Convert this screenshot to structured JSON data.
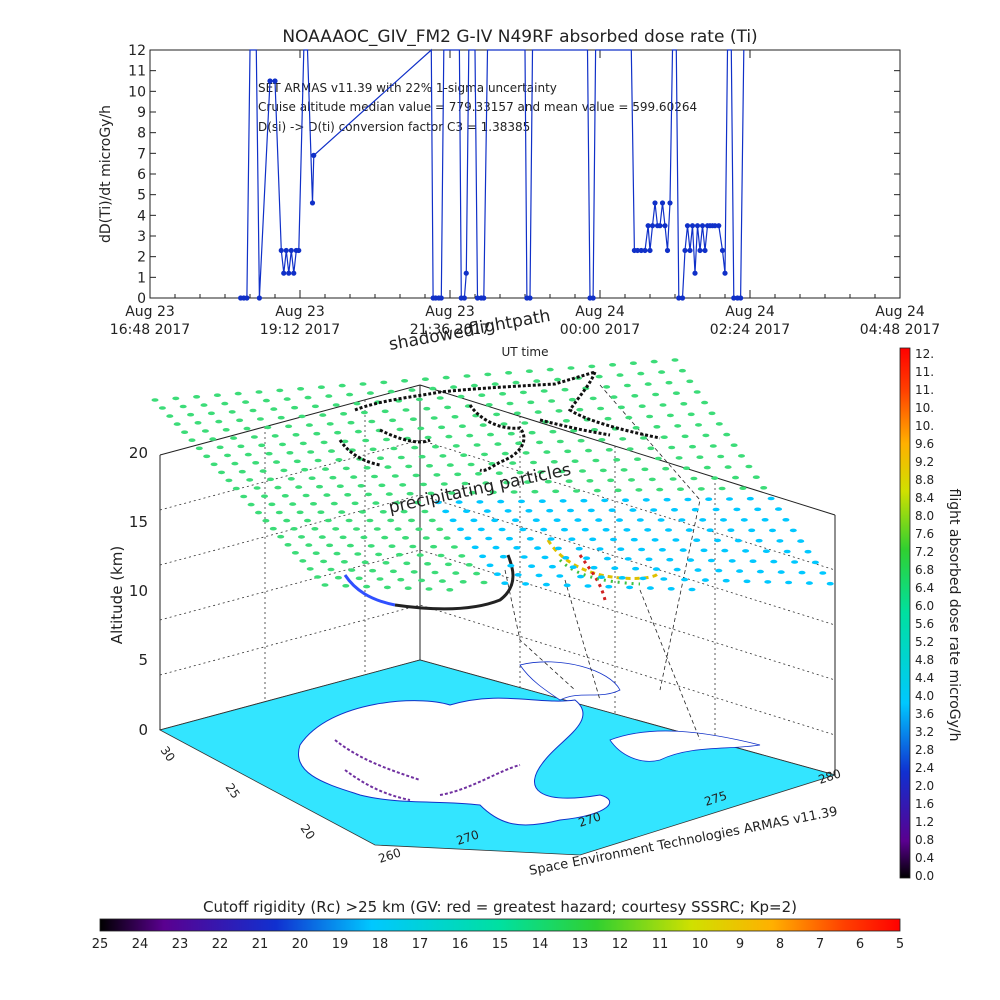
{
  "chart_data": [
    {
      "type": "line",
      "title": "NOAAAOC_GIV_FM2 G-IV   N49RF  absorbed dose rate (Ti)",
      "ylabel": "dD(Ti)/dt microGy/h",
      "xlabel": "UT time",
      "ylim": [
        0,
        12
      ],
      "yticks": [
        "0",
        "1",
        "2",
        "3",
        "4",
        "5",
        "6",
        "7",
        "8",
        "9",
        "10",
        "11",
        "12"
      ],
      "xlim_hours": [
        0,
        12
      ],
      "xticks": [
        {
          "hours": 0,
          "line1": "Aug 23",
          "line2": "16:48 2017"
        },
        {
          "hours": 2.4,
          "line1": "Aug 23",
          "line2": "19:12 2017"
        },
        {
          "hours": 4.8,
          "line1": "Aug 23",
          "line2": "21:36 2017"
        },
        {
          "hours": 7.2,
          "line1": "Aug 24",
          "line2": "00:00 2017"
        },
        {
          "hours": 9.6,
          "line1": "Aug 24",
          "line2": "02:24 2017"
        },
        {
          "hours": 12.0,
          "line1": "Aug 24",
          "line2": "04:48 2017"
        }
      ],
      "annotations": [
        "SET ARMAS v11.39 with 22% 1-sigma uncertainty",
        "Cruise altitude median value = 779.33157 and mean value = 599.60264",
        "D(si) -> D(ti) conversion factor C3 = 1.38385"
      ],
      "series": [
        {
          "color": "#1030c8",
          "points": [
            [
              1.45,
              0
            ],
            [
              1.5,
              0
            ],
            [
              1.55,
              0
            ],
            [
              1.6,
              14
            ],
            [
              1.7,
              14
            ],
            [
              1.75,
              0
            ],
            [
              1.92,
              10.5
            ],
            [
              2.0,
              10.5
            ],
            [
              2.1,
              2.3
            ],
            [
              2.14,
              1.2
            ],
            [
              2.18,
              2.3
            ],
            [
              2.22,
              1.2
            ],
            [
              2.26,
              2.3
            ],
            [
              2.3,
              1.2
            ],
            [
              2.34,
              2.3
            ],
            [
              2.38,
              2.3
            ],
            [
              2.46,
              14
            ],
            [
              2.52,
              14
            ],
            [
              2.6,
              4.6
            ],
            [
              2.62,
              6.9
            ],
            [
              4.5,
              14
            ],
            [
              4.53,
              0
            ],
            [
              4.57,
              0
            ],
            [
              4.62,
              0
            ],
            [
              4.66,
              0
            ],
            [
              4.7,
              14
            ],
            [
              4.95,
              14
            ],
            [
              4.98,
              0
            ],
            [
              5.03,
              0
            ],
            [
              5.06,
              1.2
            ],
            [
              5.1,
              14
            ],
            [
              5.2,
              14
            ],
            [
              5.24,
              0
            ],
            [
              5.3,
              0
            ],
            [
              5.34,
              0
            ],
            [
              5.4,
              14
            ],
            [
              6.0,
              14
            ],
            [
              6.03,
              0
            ],
            [
              6.08,
              0
            ],
            [
              6.12,
              14
            ],
            [
              7.0,
              14
            ],
            [
              7.04,
              0
            ],
            [
              7.09,
              0
            ],
            [
              7.13,
              14
            ],
            [
              7.7,
              14
            ],
            [
              7.75,
              2.3
            ],
            [
              7.8,
              2.3
            ],
            [
              7.86,
              2.3
            ],
            [
              7.92,
              2.3
            ],
            [
              7.97,
              3.5
            ],
            [
              8.0,
              2.3
            ],
            [
              8.04,
              3.5
            ],
            [
              8.08,
              4.6
            ],
            [
              8.12,
              3.5
            ],
            [
              8.16,
              3.5
            ],
            [
              8.2,
              4.6
            ],
            [
              8.24,
              3.5
            ],
            [
              8.28,
              2.3
            ],
            [
              8.32,
              4.6
            ],
            [
              8.36,
              14
            ],
            [
              8.42,
              14
            ],
            [
              8.46,
              0
            ],
            [
              8.52,
              0
            ],
            [
              8.56,
              2.3
            ],
            [
              8.6,
              3.5
            ],
            [
              8.64,
              2.3
            ],
            [
              8.68,
              3.5
            ],
            [
              8.72,
              1.2
            ],
            [
              8.76,
              3.5
            ],
            [
              8.8,
              2.3
            ],
            [
              8.84,
              3.5
            ],
            [
              8.88,
              2.3
            ],
            [
              8.92,
              3.5
            ],
            [
              8.96,
              3.5
            ],
            [
              9.0,
              3.5
            ],
            [
              9.04,
              3.5
            ],
            [
              9.1,
              3.5
            ],
            [
              9.16,
              2.3
            ],
            [
              9.2,
              1.2
            ],
            [
              9.24,
              14
            ],
            [
              9.3,
              14
            ],
            [
              9.34,
              0
            ],
            [
              9.4,
              0
            ],
            [
              9.45,
              0
            ],
            [
              9.5,
              14
            ]
          ]
        }
      ]
    },
    {
      "type": "scatter",
      "title": "",
      "annotations": [
        "flightpath",
        "shadowed",
        "precipitating particles"
      ],
      "zlabel": "Altitude (km)",
      "zticks": [
        "0",
        "5",
        "10",
        "15",
        "20"
      ],
      "lat_ticks": [
        "20",
        "25",
        "30"
      ],
      "lon_ticks": [
        "260",
        "270",
        "275",
        "280"
      ],
      "credit": "Space Environment Technologies ARMAS v11.39"
    },
    {
      "type": "heatmap",
      "title": "Cutoff rigidity (Rc) >25 km (GV: red = greatest hazard; courtesy SSSRC; Kp=2)",
      "ticks": [
        "25",
        "24",
        "23",
        "22",
        "21",
        "20",
        "19",
        "18",
        "17",
        "16",
        "15",
        "14",
        "13",
        "12",
        "11",
        "10",
        "9",
        "8",
        "7",
        "6",
        "5"
      ]
    },
    {
      "type": "heatmap",
      "title": "",
      "label": "flight absorbed dose rate microGy/h",
      "ticks": [
        "0.0",
        "0.4",
        "0.8",
        "1.2",
        "1.6",
        "2.0",
        "2.4",
        "2.8",
        "3.2",
        "3.6",
        "4.0",
        "4.4",
        "4.8",
        "5.2",
        "5.6",
        "6.0",
        "6.4",
        "6.8",
        "7.2",
        "7.6",
        "8.0",
        "8.4",
        "8.8",
        "9.2",
        "9.6",
        "10.",
        "10.",
        "11.",
        "11.",
        "12."
      ]
    }
  ],
  "colors": {
    "series": "#1030c8",
    "land": "#33e5ff",
    "ocean": "#ffffff",
    "grid": "#333333",
    "path": "#111111",
    "dots": "#3cdc78"
  }
}
